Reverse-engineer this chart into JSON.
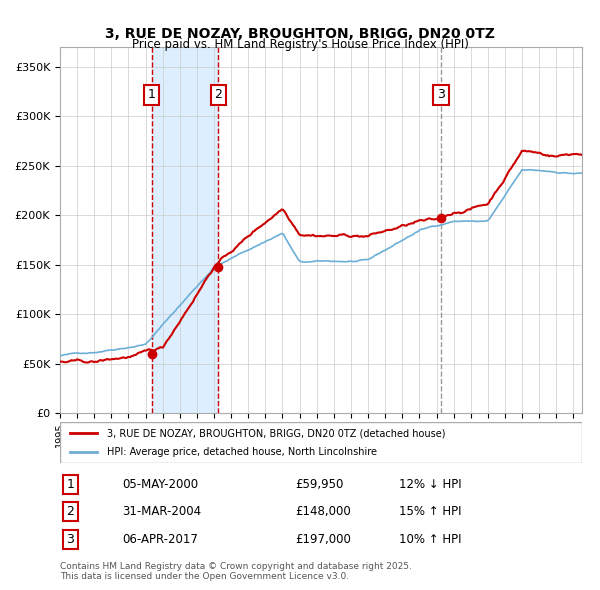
{
  "title": "3, RUE DE NOZAY, BROUGHTON, BRIGG, DN20 0TZ",
  "subtitle": "Price paid vs. HM Land Registry's House Price Index (HPI)",
  "legend_line1": "3, RUE DE NOZAY, BROUGHTON, BRIGG, DN20 0TZ (detached house)",
  "legend_line2": "HPI: Average price, detached house, North Lincolnshire",
  "footer": "Contains HM Land Registry data © Crown copyright and database right 2025.\nThis data is licensed under the Open Government Licence v3.0.",
  "transactions": [
    {
      "num": 1,
      "date": "05-MAY-2000",
      "price": 59950,
      "hpi_rel": "12% ↓ HPI",
      "year": 2000.35
    },
    {
      "num": 2,
      "date": "31-MAR-2004",
      "price": 148000,
      "hpi_rel": "15% ↑ HPI",
      "year": 2004.25
    },
    {
      "num": 3,
      "date": "06-APR-2017",
      "price": 197000,
      "hpi_rel": "10% ↑ HPI",
      "year": 2017.27
    }
  ],
  "hpi_color": "#6baed6",
  "price_color": "#cc0000",
  "vline1_color": "#cc0000",
  "vline2_color": "#999999",
  "shade_color": "#ddeeff",
  "ylim": [
    0,
    370000
  ],
  "xlim_start": 1995.0,
  "xlim_end": 2025.5
}
